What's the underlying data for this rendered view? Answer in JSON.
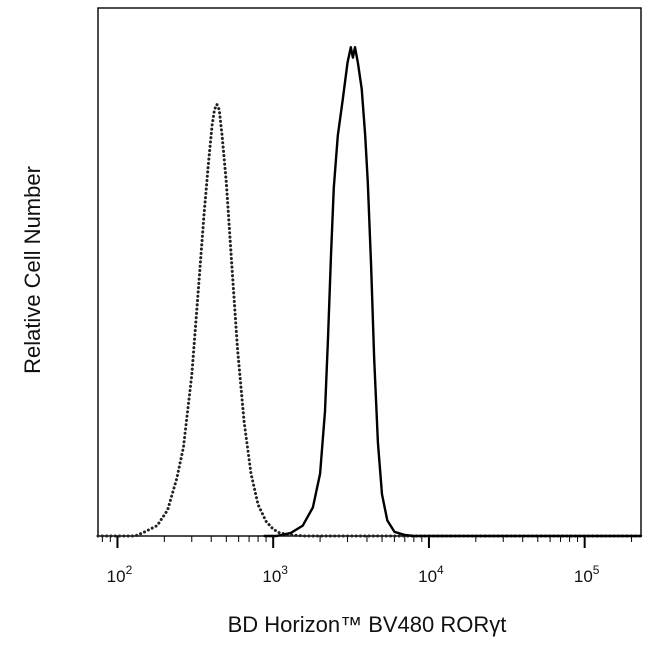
{
  "chart_data": {
    "type": "line",
    "title": "",
    "xlabel": "BD Horizon™ BV480 RORγt",
    "ylabel": "Relative Cell Number",
    "x_scale": "log",
    "xlim": [
      75,
      230000
    ],
    "ylim": [
      0,
      100
    ],
    "grid": false,
    "legend": "none",
    "x_ticks": [
      {
        "base": "10",
        "exp": "2",
        "value": 100
      },
      {
        "base": "10",
        "exp": "3",
        "value": 1000
      },
      {
        "base": "10",
        "exp": "4",
        "value": 10000
      },
      {
        "base": "10",
        "exp": "5",
        "value": 100000
      }
    ],
    "series": [
      {
        "style": "dotted",
        "color": "#222222",
        "points": [
          [
            75,
            0
          ],
          [
            130,
            0
          ],
          [
            150,
            0.8
          ],
          [
            180,
            2
          ],
          [
            210,
            5
          ],
          [
            240,
            11
          ],
          [
            265,
            17
          ],
          [
            300,
            31
          ],
          [
            330,
            47
          ],
          [
            360,
            62
          ],
          [
            385,
            72
          ],
          [
            405,
            79
          ],
          [
            420,
            82
          ],
          [
            435,
            83
          ],
          [
            450,
            82
          ],
          [
            470,
            77
          ],
          [
            500,
            68
          ],
          [
            540,
            53
          ],
          [
            590,
            36
          ],
          [
            650,
            22
          ],
          [
            720,
            12
          ],
          [
            800,
            6
          ],
          [
            900,
            2.8
          ],
          [
            1000,
            1.3
          ],
          [
            1100,
            0.6
          ],
          [
            1300,
            0.2
          ],
          [
            1600,
            0
          ],
          [
            230000,
            0
          ]
        ]
      },
      {
        "style": "solid",
        "color": "#000000",
        "points": [
          [
            880,
            0
          ],
          [
            1050,
            0
          ],
          [
            1300,
            0.6
          ],
          [
            1550,
            2
          ],
          [
            1800,
            5.5
          ],
          [
            2000,
            12
          ],
          [
            2150,
            24
          ],
          [
            2250,
            38
          ],
          [
            2350,
            54
          ],
          [
            2450,
            67
          ],
          [
            2600,
            77
          ],
          [
            2800,
            84
          ],
          [
            3000,
            91
          ],
          [
            3150,
            94
          ],
          [
            3250,
            92
          ],
          [
            3350,
            94
          ],
          [
            3500,
            91
          ],
          [
            3700,
            86
          ],
          [
            3900,
            77
          ],
          [
            4050,
            68
          ],
          [
            4250,
            52
          ],
          [
            4450,
            34
          ],
          [
            4700,
            18
          ],
          [
            5000,
            8
          ],
          [
            5400,
            3
          ],
          [
            6000,
            0.8
          ],
          [
            7000,
            0.2
          ],
          [
            8000,
            0
          ],
          [
            230000,
            0
          ]
        ]
      }
    ]
  }
}
